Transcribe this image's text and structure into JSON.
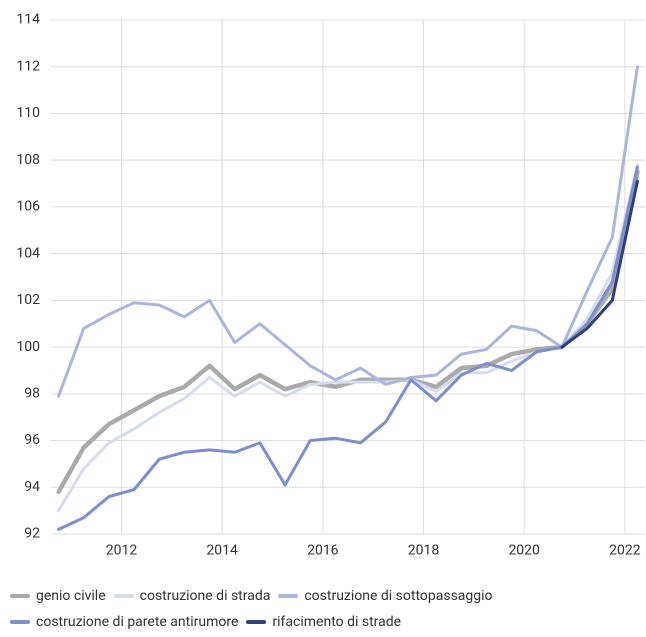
{
  "chart_data": {
    "type": "line",
    "x": [
      2010.75,
      2011.25,
      2011.75,
      2012.25,
      2012.75,
      2013.25,
      2013.75,
      2014.25,
      2014.75,
      2015.25,
      2015.75,
      2016.25,
      2016.75,
      2017.25,
      2017.75,
      2018.25,
      2018.75,
      2019.25,
      2019.75,
      2020.25,
      2020.75,
      2021.25,
      2021.75,
      2022.25
    ],
    "series": [
      {
        "name": "genio civile",
        "color": "#aaaaaa",
        "values": [
          93.8,
          95.7,
          96.7,
          97.3,
          97.9,
          98.3,
          99.2,
          98.2,
          98.8,
          98.2,
          98.5,
          98.3,
          98.6,
          98.6,
          98.6,
          98.3,
          99.1,
          99.2,
          99.7,
          99.9,
          100,
          101.0,
          102.5,
          107.5
        ]
      },
      {
        "name": "costruzione di strada",
        "color": "#d5dcef",
        "values": [
          93.0,
          94.8,
          95.9,
          96.5,
          97.2,
          97.8,
          98.7,
          97.9,
          98.5,
          97.9,
          98.4,
          98.5,
          98.5,
          98.5,
          98.6,
          98.1,
          98.9,
          98.9,
          99.4,
          99.8,
          100,
          101.2,
          103.2,
          107.8
        ]
      },
      {
        "name": "costruzione di sottopassaggio",
        "color": "#a9b6dc",
        "values": [
          97.9,
          100.8,
          101.4,
          101.9,
          101.8,
          101.3,
          102.0,
          100.2,
          101.0,
          100.1,
          99.2,
          98.6,
          99.1,
          98.4,
          98.7,
          98.8,
          99.7,
          99.9,
          100.9,
          100.7,
          100,
          102.4,
          104.7,
          112.0
        ]
      },
      {
        "name": "costruzione di parete antirumore",
        "color": "#7a8fcc",
        "values": [
          92.2,
          92.7,
          93.6,
          93.9,
          95.2,
          95.5,
          95.6,
          95.5,
          95.9,
          94.1,
          96.0,
          96.1,
          95.9,
          96.8,
          98.6,
          97.7,
          98.8,
          99.3,
          99.0,
          99.8,
          100,
          101.0,
          102.8,
          107.7
        ]
      },
      {
        "name": "rifacimento di strade",
        "color": "#2e3f7f",
        "values": [
          null,
          null,
          null,
          null,
          null,
          null,
          null,
          null,
          null,
          null,
          null,
          null,
          null,
          null,
          null,
          null,
          null,
          null,
          null,
          null,
          100,
          100.8,
          102.0,
          107.1
        ]
      }
    ],
    "xlim": [
      2010.6,
      2022.4
    ],
    "xticks": [
      2012,
      2014,
      2016,
      2018,
      2020,
      2022
    ],
    "ylim": [
      92,
      114
    ],
    "yticks": [
      92,
      94,
      96,
      98,
      100,
      102,
      104,
      106,
      108,
      110,
      112,
      114
    ],
    "grid": true
  }
}
